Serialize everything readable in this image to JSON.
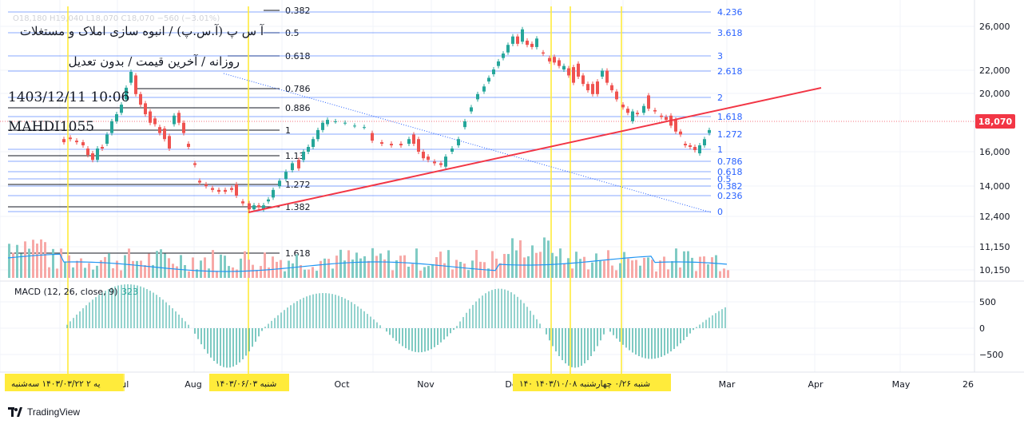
{
  "header": {
    "symbol_name": "آ س پ (آ.س.پ) / انبوه سازی املاک و مستغلات",
    "interval_line": "روزانه / آخرین قیمت / بدون تعدیل",
    "datetime": "1403/12/11 10:06",
    "author": "MAHDI1055",
    "ohlc_faint": "O18,180 H19,040 L18,070 C18,070 −560 (−3.01%)"
  },
  "macd": {
    "label": "MACD (12, 26, close, 9)",
    "value": "323",
    "y_ticks": [
      "500",
      "0",
      "−500"
    ]
  },
  "price_axis": {
    "ticks": [
      "26,000",
      "22,000",
      "20,000",
      "16,000",
      "14,000",
      "12,400",
      "11,150",
      "10,150"
    ],
    "current_price": "18,070"
  },
  "time_axis": {
    "labels": [
      "Jul",
      "Aug",
      "Oct",
      "Nov",
      "De",
      "Mar",
      "Apr",
      "May",
      "26"
    ],
    "date_flags": [
      "یه ۲  ۱۴۰۳/۰۳/۲۲ سه‌شنبه",
      "۱۴۰۳/۰۶/۰۳ شنبه",
      "۱۴۰  ۱۴۰۳/۱۰/۰۸  شنبه ۰/۲۶ چهارشنبه"
    ]
  },
  "fib_left": [
    "0.382",
    "0.5",
    "0.618",
    "0.786",
    "0.886",
    "1",
    "1.13",
    "1.272",
    "1.382",
    "1.618"
  ],
  "fib_right": [
    "4.236",
    "3.618",
    "3",
    "2.618",
    "2",
    "1.618",
    "1.272",
    "1",
    "0.786",
    "0.618",
    "0.5",
    "0.382",
    "0.236",
    "0"
  ],
  "colors": {
    "up": "#26a69a",
    "down": "#ef5350",
    "fib_blue": "#2962ff",
    "trendline": "#f23645",
    "vline": "#ffeb3b",
    "flag_bg": "#ffeb3b",
    "price_badge": "#f23645"
  },
  "footer": {
    "brand": "TradingView"
  },
  "chart_data": {
    "type": "candlestick",
    "y_scale": "log",
    "ylim": [
      10000,
      27500
    ],
    "candles": [
      {
        "x": 80,
        "o": 16800,
        "c": 16600
      },
      {
        "x": 88,
        "o": 16900,
        "c": 16800
      },
      {
        "x": 96,
        "o": 16700,
        "c": 16600
      },
      {
        "x": 104,
        "o": 16600,
        "c": 16400
      },
      {
        "x": 110,
        "o": 16200,
        "c": 15800
      },
      {
        "x": 116,
        "o": 15900,
        "c": 15500
      },
      {
        "x": 122,
        "o": 15500,
        "c": 16200
      },
      {
        "x": 128,
        "o": 16300,
        "c": 16200
      },
      {
        "x": 134,
        "o": 16500,
        "c": 17100
      },
      {
        "x": 140,
        "o": 17200,
        "c": 18000
      },
      {
        "x": 146,
        "o": 18000,
        "c": 18500
      },
      {
        "x": 152,
        "o": 18600,
        "c": 19200
      },
      {
        "x": 158,
        "o": 19600,
        "c": 20500
      },
      {
        "x": 164,
        "o": 20900,
        "c": 21800
      },
      {
        "x": 170,
        "o": 21500,
        "c": 20000
      },
      {
        "x": 176,
        "o": 20000,
        "c": 19200
      },
      {
        "x": 182,
        "o": 19300,
        "c": 18500
      },
      {
        "x": 188,
        "o": 18700,
        "c": 17900
      },
      {
        "x": 194,
        "o": 18200,
        "c": 17800
      },
      {
        "x": 200,
        "o": 17600,
        "c": 17200
      },
      {
        "x": 206,
        "o": 17500,
        "c": 16800
      },
      {
        "x": 212,
        "o": 17000,
        "c": 16200
      },
      {
        "x": 218,
        "o": 17800,
        "c": 18400
      },
      {
        "x": 224,
        "o": 18600,
        "c": 17900
      },
      {
        "x": 230,
        "o": 17900,
        "c": 17200
      },
      {
        "x": 236,
        "o": 16500,
        "c": 16300
      },
      {
        "x": 244,
        "o": 15300,
        "c": 15200
      },
      {
        "x": 250,
        "o": 14300,
        "c": 14200
      },
      {
        "x": 258,
        "o": 14100,
        "c": 14000
      },
      {
        "x": 266,
        "o": 13900,
        "c": 13800
      },
      {
        "x": 274,
        "o": 13800,
        "c": 13700
      },
      {
        "x": 282,
        "o": 13800,
        "c": 13700
      },
      {
        "x": 290,
        "o": 13900,
        "c": 13800
      },
      {
        "x": 296,
        "o": 14100,
        "c": 13500
      },
      {
        "x": 304,
        "o": 13200,
        "c": 13100
      },
      {
        "x": 312,
        "o": 13100,
        "c": 12800
      },
      {
        "x": 318,
        "o": 12800,
        "c": 13000
      },
      {
        "x": 324,
        "o": 13000,
        "c": 12900
      },
      {
        "x": 330,
        "o": 12800,
        "c": 13000
      },
      {
        "x": 336,
        "o": 13200,
        "c": 13300
      },
      {
        "x": 342,
        "o": 13400,
        "c": 13800
      },
      {
        "x": 350,
        "o": 14000,
        "c": 14300
      },
      {
        "x": 358,
        "o": 14400,
        "c": 14800
      },
      {
        "x": 366,
        "o": 14900,
        "c": 15300
      },
      {
        "x": 374,
        "o": 15500,
        "c": 15000
      },
      {
        "x": 380,
        "o": 15500,
        "c": 16000
      },
      {
        "x": 386,
        "o": 16000,
        "c": 16300
      },
      {
        "x": 392,
        "o": 16300,
        "c": 16800
      },
      {
        "x": 398,
        "o": 16800,
        "c": 17400
      },
      {
        "x": 404,
        "o": 17400,
        "c": 17900
      },
      {
        "x": 410,
        "o": 17800,
        "c": 18100
      },
      {
        "x": 420,
        "o": 18000,
        "c": 18000
      },
      {
        "x": 432,
        "o": 17900,
        "c": 17900
      },
      {
        "x": 444,
        "o": 17700,
        "c": 17700
      },
      {
        "x": 456,
        "o": 17600,
        "c": 17600
      },
      {
        "x": 466,
        "o": 17200,
        "c": 16700
      },
      {
        "x": 478,
        "o": 16600,
        "c": 16500
      },
      {
        "x": 490,
        "o": 16500,
        "c": 16400
      },
      {
        "x": 502,
        "o": 16500,
        "c": 16400
      },
      {
        "x": 512,
        "o": 16500,
        "c": 16800
      },
      {
        "x": 518,
        "o": 17100,
        "c": 16500
      },
      {
        "x": 524,
        "o": 16800,
        "c": 16000
      },
      {
        "x": 530,
        "o": 16000,
        "c": 15600
      },
      {
        "x": 536,
        "o": 15700,
        "c": 15500
      },
      {
        "x": 544,
        "o": 15400,
        "c": 15300
      },
      {
        "x": 552,
        "o": 15300,
        "c": 15200
      },
      {
        "x": 558,
        "o": 15100,
        "c": 15700
      },
      {
        "x": 566,
        "o": 16000,
        "c": 16200
      },
      {
        "x": 574,
        "o": 16400,
        "c": 16800
      },
      {
        "x": 582,
        "o": 17600,
        "c": 18000
      },
      {
        "x": 590,
        "o": 18700,
        "c": 19000
      },
      {
        "x": 598,
        "o": 19600,
        "c": 20000
      },
      {
        "x": 606,
        "o": 20200,
        "c": 20600
      },
      {
        "x": 612,
        "o": 21000,
        "c": 21300
      },
      {
        "x": 618,
        "o": 21600,
        "c": 22000
      },
      {
        "x": 624,
        "o": 22300,
        "c": 22700
      },
      {
        "x": 630,
        "o": 23000,
        "c": 23400
      },
      {
        "x": 636,
        "o": 23500,
        "c": 24200
      },
      {
        "x": 642,
        "o": 24300,
        "c": 25000
      },
      {
        "x": 648,
        "o": 25000,
        "c": 24300
      },
      {
        "x": 654,
        "o": 24500,
        "c": 25700
      },
      {
        "x": 660,
        "o": 24600,
        "c": 24200
      },
      {
        "x": 666,
        "o": 24300,
        "c": 24000
      },
      {
        "x": 672,
        "o": 24000,
        "c": 24800
      },
      {
        "x": 680,
        "o": 23500,
        "c": 23400
      },
      {
        "x": 688,
        "o": 23000,
        "c": 22700
      },
      {
        "x": 694,
        "o": 23100,
        "c": 22600
      },
      {
        "x": 700,
        "o": 22800,
        "c": 22300
      },
      {
        "x": 706,
        "o": 22000,
        "c": 22300
      },
      {
        "x": 712,
        "o": 22100,
        "c": 21500
      },
      {
        "x": 718,
        "o": 22200,
        "c": 20900
      },
      {
        "x": 724,
        "o": 22500,
        "c": 21400
      },
      {
        "x": 730,
        "o": 21500,
        "c": 20800
      },
      {
        "x": 736,
        "o": 20800,
        "c": 20300
      },
      {
        "x": 742,
        "o": 20800,
        "c": 20000
      },
      {
        "x": 748,
        "o": 21000,
        "c": 20000
      },
      {
        "x": 754,
        "o": 21400,
        "c": 21900
      },
      {
        "x": 760,
        "o": 21900,
        "c": 20900
      },
      {
        "x": 766,
        "o": 20700,
        "c": 20300
      },
      {
        "x": 772,
        "o": 20200,
        "c": 19600
      },
      {
        "x": 780,
        "o": 19200,
        "c": 19000
      },
      {
        "x": 786,
        "o": 18900,
        "c": 18600
      },
      {
        "x": 792,
        "o": 18000,
        "c": 18700
      },
      {
        "x": 798,
        "o": 18600,
        "c": 18500
      },
      {
        "x": 806,
        "o": 18600,
        "c": 19100
      },
      {
        "x": 812,
        "o": 19900,
        "c": 18900
      },
      {
        "x": 820,
        "o": 18800,
        "c": 18700
      },
      {
        "x": 828,
        "o": 18400,
        "c": 18300
      },
      {
        "x": 834,
        "o": 18300,
        "c": 18100
      },
      {
        "x": 840,
        "o": 18400,
        "c": 17700
      },
      {
        "x": 846,
        "o": 18100,
        "c": 17300
      },
      {
        "x": 852,
        "o": 17300,
        "c": 17100
      },
      {
        "x": 858,
        "o": 16500,
        "c": 16400
      },
      {
        "x": 864,
        "o": 16400,
        "c": 16300
      },
      {
        "x": 870,
        "o": 16300,
        "c": 16100
      },
      {
        "x": 876,
        "o": 15900,
        "c": 16400
      },
      {
        "x": 882,
        "o": 16400,
        "c": 16800
      },
      {
        "x": 888,
        "o": 17200,
        "c": 17400
      }
    ]
  }
}
